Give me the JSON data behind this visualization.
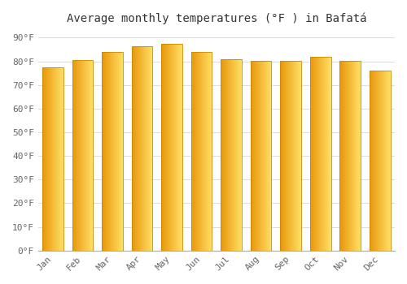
{
  "months": [
    "Jan",
    "Feb",
    "Mar",
    "Apr",
    "May",
    "Jun",
    "Jul",
    "Aug",
    "Sep",
    "Oct",
    "Nov",
    "Dec"
  ],
  "values": [
    77.4,
    80.4,
    84.0,
    86.2,
    87.3,
    84.0,
    81.0,
    80.2,
    80.2,
    81.9,
    80.2,
    75.9
  ],
  "bar_color_left": "#F5A800",
  "bar_color_right": "#FFD966",
  "bar_color_center": "#FFC200",
  "title": "Average monthly temperatures (°F ) in Bafatá",
  "ylabel_ticks": [
    "0°F",
    "10°F",
    "20°F",
    "30°F",
    "40°F",
    "50°F",
    "60°F",
    "70°F",
    "80°F",
    "90°F"
  ],
  "ytick_values": [
    0,
    10,
    20,
    30,
    40,
    50,
    60,
    70,
    80,
    90
  ],
  "ylim": [
    0,
    93
  ],
  "background_color": "#ffffff",
  "grid_color": "#dddddd",
  "title_fontsize": 10,
  "tick_fontsize": 8,
  "bar_edge_color": "#CC8800",
  "bar_width": 0.7
}
